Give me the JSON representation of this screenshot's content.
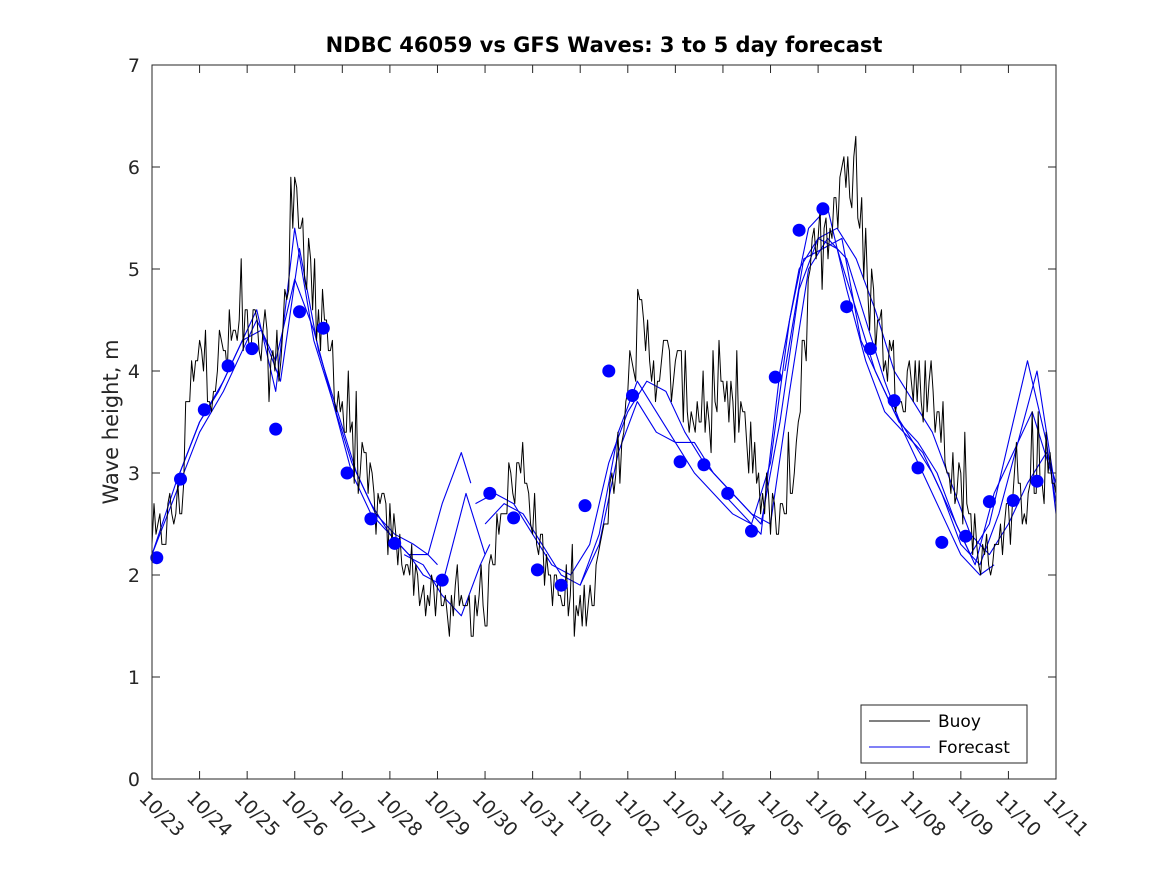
{
  "chart_data": {
    "type": "line",
    "title": "NDBC 46059 vs GFS Waves: 3 to 5 day forecast",
    "xlabel": "",
    "ylabel": "Wave height, m",
    "ylim": [
      0,
      7
    ],
    "yticks": [
      0,
      1,
      2,
      3,
      4,
      5,
      6,
      7
    ],
    "xlim": [
      0,
      19
    ],
    "xticks": [
      "10/23",
      "10/24",
      "10/25",
      "10/26",
      "10/27",
      "10/28",
      "10/29",
      "10/30",
      "10/31",
      "11/01",
      "11/02",
      "11/03",
      "11/04",
      "11/05",
      "11/06",
      "11/07",
      "11/08",
      "11/09",
      "11/10",
      "11/11"
    ],
    "legend": {
      "position": "bottom-right",
      "entries": [
        "Buoy",
        "Forecast"
      ]
    },
    "colors": {
      "buoy": "#000000",
      "forecast": "#0000ee",
      "markers": "#0000ff",
      "axes": "#262626"
    },
    "buoy_anchors": {
      "x": [
        0,
        0.3,
        0.6,
        0.8,
        1.0,
        1.3,
        1.6,
        2.0,
        2.3,
        2.6,
        2.9,
        3.05,
        3.2,
        3.5,
        3.8,
        4.1,
        4.5,
        4.9,
        5.3,
        5.6,
        6.0,
        6.5,
        7.0,
        7.3,
        7.6,
        7.8,
        8.2,
        8.5,
        8.9,
        9.3,
        9.6,
        9.8,
        10.2,
        10.6,
        11.0,
        11.4,
        11.8,
        12.2,
        12.6,
        13.0,
        13.3,
        13.6,
        13.9,
        14.2,
        14.4,
        14.6,
        14.9,
        15.2,
        15.6,
        16.0,
        16.4,
        16.8,
        17.2,
        17.5,
        17.8,
        18.1,
        18.4,
        18.7,
        19.0
      ],
      "y": [
        2.2,
        2.5,
        2.7,
        3.8,
        4.1,
        4.0,
        4.2,
        4.5,
        4.2,
        4.0,
        5.0,
        5.9,
        5.3,
        4.5,
        4.1,
        3.4,
        2.9,
        2.5,
        2.2,
        1.9,
        1.7,
        1.6,
        1.6,
        2.7,
        2.9,
        3.1,
        2.2,
        1.8,
        1.6,
        1.9,
        2.6,
        3.1,
        4.4,
        4.1,
        4.0,
        3.6,
        3.5,
        3.6,
        3.2,
        2.6,
        2.4,
        3.7,
        5.0,
        5.5,
        5.9,
        6.1,
        5.3,
        4.5,
        4.0,
        3.9,
        3.8,
        3.0,
        2.5,
        2.1,
        2.4,
        2.6,
        2.8,
        3.0,
        2.8
      ]
    },
    "forecast_series": [
      {
        "name": "Forecast",
        "x": [
          0,
          0.5,
          1.0,
          1.5,
          1.8,
          2.2,
          2.6,
          3.0,
          3.4,
          3.8,
          4.2,
          4.6,
          5.0,
          5.4,
          5.8,
          6.0
        ],
        "y": [
          2.2,
          2.8,
          3.4,
          3.8,
          4.1,
          4.5,
          4.1,
          4.9,
          4.4,
          3.7,
          3.0,
          2.6,
          2.4,
          2.2,
          2.2,
          2.1
        ]
      },
      {
        "name": "Forecast",
        "x": [
          0,
          0.5,
          1.0,
          1.5,
          1.9,
          2.3,
          2.7,
          3.1,
          3.5,
          3.9,
          4.3,
          4.7,
          5.1,
          5.5,
          5.8,
          6.1,
          6.5,
          6.7
        ],
        "y": [
          2.2,
          2.9,
          3.5,
          3.9,
          4.3,
          4.4,
          3.9,
          5.2,
          4.2,
          3.6,
          3.0,
          2.6,
          2.4,
          2.3,
          2.2,
          2.7,
          3.2,
          2.9
        ]
      },
      {
        "name": "Forecast",
        "x": [
          0.5,
          1.0,
          1.4,
          1.8,
          2.2,
          2.6,
          3.0,
          3.4,
          3.8,
          4.2,
          4.6,
          5.0,
          5.4,
          5.7,
          6.1,
          6.6,
          7.0
        ],
        "y": [
          2.9,
          3.5,
          3.8,
          4.2,
          4.6,
          3.8,
          5.4,
          4.3,
          3.7,
          3.1,
          2.7,
          2.4,
          2.2,
          2.0,
          1.9,
          2.8,
          2.2
        ]
      },
      {
        "name": "Forecast",
        "x": [
          6.8,
          7.2,
          7.6,
          8.0,
          8.4,
          8.8,
          9.2,
          9.6,
          10.0,
          10.4,
          10.8,
          11.2,
          11.6,
          12.0,
          12.4,
          12.8,
          13.2,
          13.6,
          14.0,
          14.4,
          14.8,
          15.2,
          15.6,
          16.0,
          16.4,
          16.8,
          17.2,
          17.6,
          18.0,
          18.4,
          18.8,
          19.0
        ],
        "y": [
          2.7,
          2.8,
          2.7,
          2.4,
          2.1,
          2.0,
          2.3,
          3.1,
          3.6,
          3.9,
          3.8,
          3.4,
          3.1,
          2.9,
          2.7,
          2.5,
          3.5,
          4.8,
          5.3,
          5.4,
          5.1,
          4.6,
          4.0,
          3.7,
          3.4,
          2.9,
          2.4,
          2.2,
          2.5,
          2.9,
          3.2,
          2.9
        ]
      },
      {
        "name": "Forecast",
        "x": [
          7.0,
          7.4,
          7.8,
          8.2,
          8.6,
          9.0,
          9.4,
          9.8,
          10.2,
          10.6,
          11.0,
          11.4,
          11.8,
          12.2,
          12.6,
          13.0,
          13.4,
          13.8,
          14.2,
          14.6,
          15.0,
          15.4,
          15.8,
          16.2,
          16.6,
          17.0,
          17.4,
          17.8,
          18.2,
          18.6,
          19.0
        ],
        "y": [
          2.5,
          2.7,
          2.6,
          2.3,
          2.0,
          1.9,
          2.4,
          3.4,
          3.9,
          3.6,
          3.3,
          3.3,
          3.0,
          2.8,
          2.6,
          2.5,
          3.8,
          5.0,
          5.3,
          5.1,
          4.5,
          3.9,
          3.4,
          3.2,
          2.8,
          2.3,
          2.1,
          2.6,
          3.3,
          4.0,
          2.8
        ]
      },
      {
        "name": "Forecast",
        "x": [
          5.3,
          5.7,
          6.1,
          6.5,
          6.9,
          7.1
        ],
        "y": [
          2.2,
          2.1,
          1.8,
          1.6,
          2.1,
          2.3
        ]
      },
      {
        "name": "Forecast",
        "x": [
          9.0,
          9.4,
          9.8,
          10.2,
          10.6,
          11.0,
          11.4,
          11.8,
          12.2,
          12.6,
          13.0,
          13.4,
          13.8,
          14.2,
          14.6,
          15.0,
          15.4,
          15.8,
          16.2,
          16.6,
          17.0,
          17.4,
          17.7
        ],
        "y": [
          1.9,
          2.3,
          3.2,
          3.7,
          3.4,
          3.3,
          3.0,
          2.8,
          2.6,
          2.5,
          3.1,
          4.5,
          5.4,
          5.6,
          4.8,
          4.1,
          3.6,
          3.4,
          3.0,
          2.6,
          2.2,
          2.0,
          2.1
        ]
      },
      {
        "name": "Forecast",
        "x": [
          12.0,
          12.4,
          12.8,
          13.2,
          13.6,
          14.0,
          14.4,
          14.8,
          15.2,
          15.6,
          16.0,
          16.4,
          16.8,
          17.2,
          17.6,
          18.0,
          18.4,
          18.8,
          19.0
        ],
        "y": [
          2.8,
          2.6,
          2.4,
          4.0,
          5.0,
          5.3,
          5.2,
          4.6,
          4.0,
          3.6,
          3.3,
          3.0,
          2.6,
          2.2,
          2.5,
          3.3,
          4.1,
          3.3,
          2.7
        ]
      },
      {
        "name": "Forecast",
        "x": [
          13.3,
          13.7,
          14.1,
          14.5,
          14.9,
          15.3,
          15.7,
          16.1,
          16.5,
          16.9,
          17.3,
          17.7,
          18.1,
          18.5,
          18.9,
          19.0
        ],
        "y": [
          4.0,
          5.1,
          5.2,
          5.3,
          4.3,
          3.9,
          3.5,
          3.3,
          3.0,
          2.5,
          2.1,
          2.8,
          3.2,
          3.6,
          3.0,
          2.6
        ]
      }
    ],
    "forecast_markers": {
      "x": [
        0.1,
        0.6,
        1.1,
        1.6,
        2.1,
        2.6,
        3.1,
        3.6,
        4.1,
        4.6,
        5.1,
        6.1,
        7.1,
        7.6,
        8.1,
        8.6,
        9.1,
        9.6,
        10.1,
        11.1,
        11.6,
        12.1,
        12.6,
        13.1,
        13.6,
        14.1,
        14.6,
        15.1,
        15.6,
        16.1,
        16.6,
        17.1,
        17.6,
        18.1,
        18.6
      ],
      "y": [
        2.17,
        2.94,
        3.62,
        4.05,
        4.22,
        3.43,
        4.58,
        4.42,
        3.0,
        2.55,
        2.31,
        1.95,
        2.8,
        2.56,
        2.05,
        1.9,
        2.68,
        4.0,
        3.76,
        3.11,
        3.08,
        2.8,
        2.43,
        3.94,
        5.38,
        5.59,
        4.63,
        4.22,
        3.71,
        3.05,
        2.32,
        2.38,
        2.72,
        2.73,
        2.92
      ]
    }
  }
}
